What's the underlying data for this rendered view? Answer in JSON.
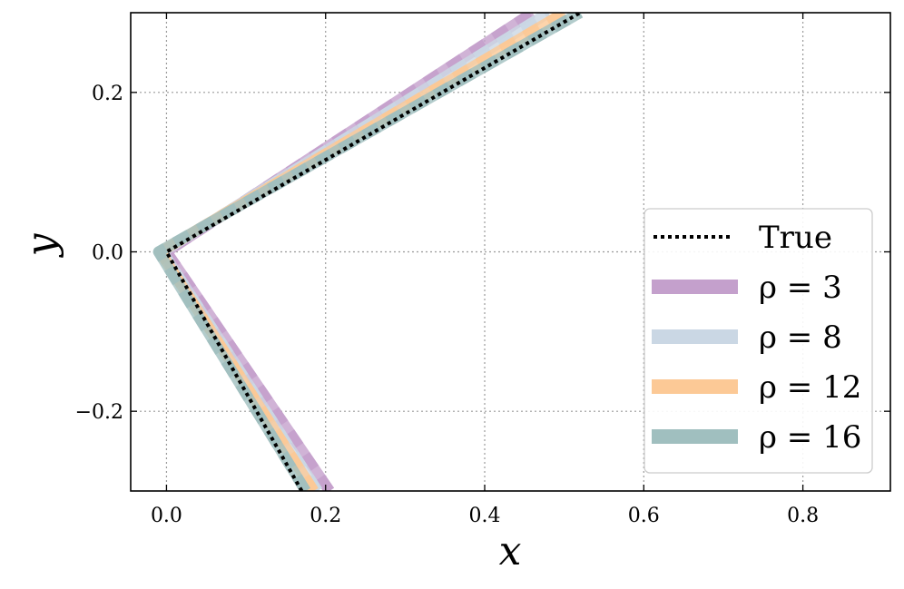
{
  "chart_data": {
    "type": "line",
    "title": "",
    "xlabel": "x",
    "ylabel": "y",
    "xlim": [
      -0.045,
      0.91
    ],
    "ylim": [
      -0.3,
      0.3
    ],
    "x_ticks": [
      0.0,
      0.2,
      0.4,
      0.6,
      0.8
    ],
    "x_tick_labels": [
      "0.0",
      "0.2",
      "0.4",
      "0.6",
      "0.8"
    ],
    "y_ticks": [
      -0.2,
      0.0,
      0.2
    ],
    "y_tick_labels": [
      "−0.2",
      "0.0",
      "0.2"
    ],
    "grid": true,
    "legend_position": "lower-right",
    "series": [
      {
        "name": "ρ = 3",
        "color": "#c4a0cc",
        "style": "thick-dashed",
        "x": [
          0.205,
          0.0,
          0.46
        ],
        "y": [
          -0.3,
          0.0,
          0.3
        ]
      },
      {
        "name": "ρ = 8",
        "color": "#cad7e4",
        "style": "thick-dashed",
        "x": [
          0.19,
          -0.005,
          0.48
        ],
        "y": [
          -0.3,
          0.0,
          0.3
        ]
      },
      {
        "name": "ρ = 12",
        "color": "#fcc996",
        "style": "thick-dashed",
        "x": [
          0.185,
          -0.008,
          0.5
        ],
        "y": [
          -0.3,
          0.0,
          0.3
        ]
      },
      {
        "name": "ρ = 16",
        "color": "#a0bfbf",
        "style": "thick-dashed",
        "x": [
          0.175,
          -0.01,
          0.52
        ],
        "y": [
          -0.3,
          0.0,
          0.3
        ]
      },
      {
        "name": "True",
        "color": "#000000",
        "style": "dotted",
        "x": [
          0.17,
          0.0,
          0.52
        ],
        "y": [
          -0.3,
          0.0,
          0.3
        ]
      }
    ],
    "legend": [
      {
        "label": "True",
        "color": "#000000",
        "style": "dotted"
      },
      {
        "label": "ρ = 3",
        "color": "#c4a0cc",
        "style": "thick"
      },
      {
        "label": "ρ = 8",
        "color": "#cad7e4",
        "style": "thick"
      },
      {
        "label": "ρ = 12",
        "color": "#fcc996",
        "style": "thick"
      },
      {
        "label": "ρ = 16",
        "color": "#a0bfbf",
        "style": "thick"
      }
    ]
  }
}
